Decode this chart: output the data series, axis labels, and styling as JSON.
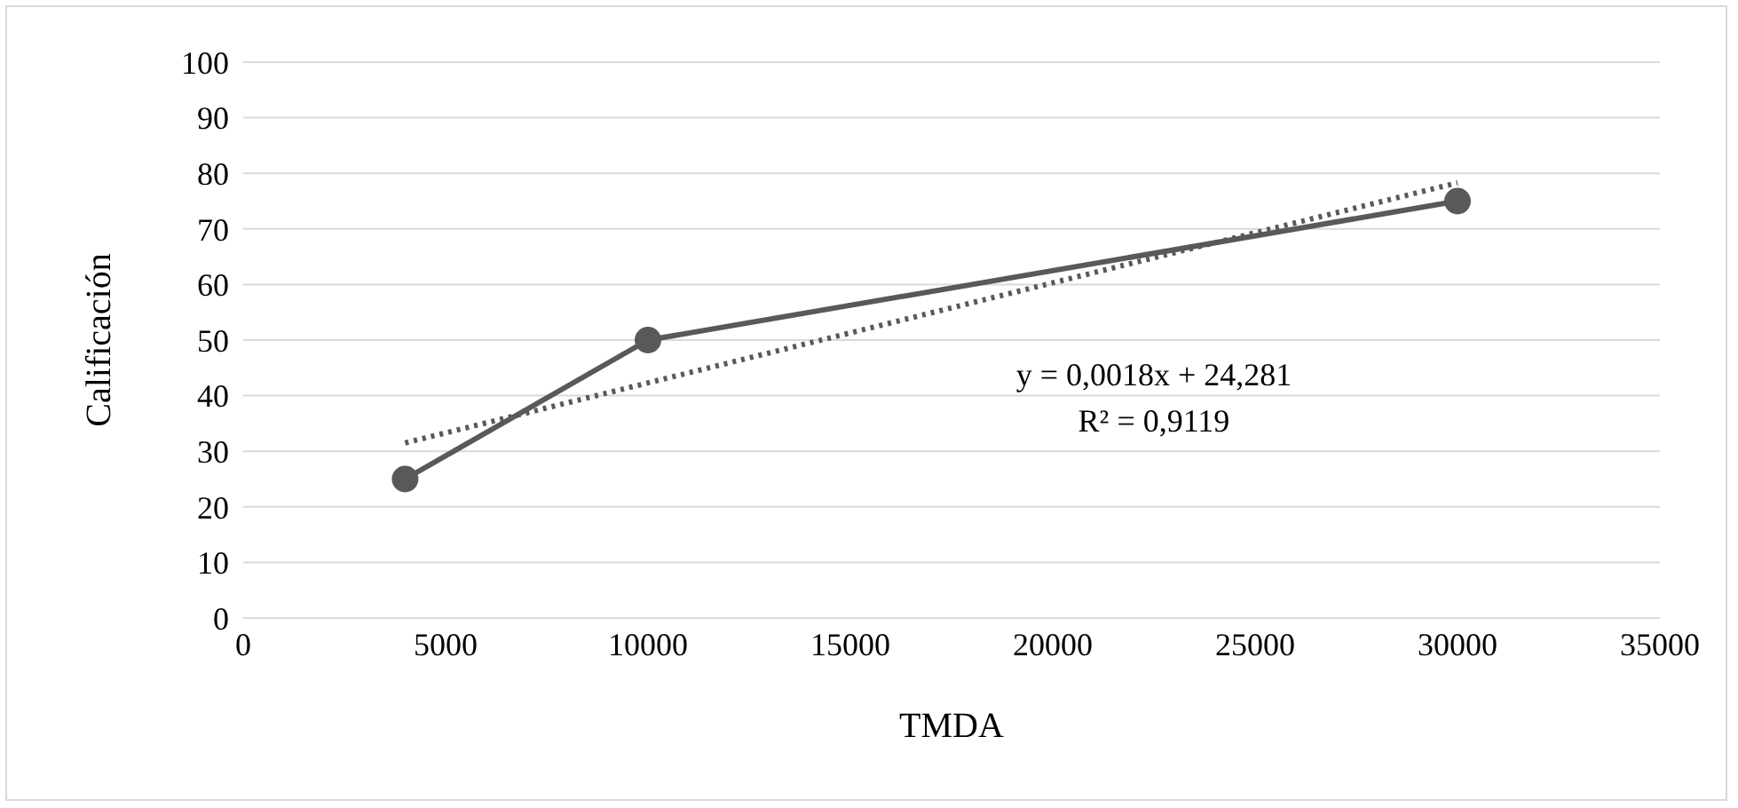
{
  "chart_data": {
    "type": "line",
    "xlabel": "TMDA",
    "ylabel": "Calificación",
    "xlim": [
      0,
      35000
    ],
    "xticks": [
      0,
      5000,
      10000,
      15000,
      20000,
      25000,
      30000,
      35000
    ],
    "ylim": [
      0,
      100
    ],
    "yticks": [
      0,
      10,
      20,
      30,
      40,
      50,
      60,
      70,
      80,
      90,
      100
    ],
    "grid": "y",
    "marker": "circle",
    "line_style": "solid",
    "series": [
      {
        "color": "#595959",
        "x": [
          4000,
          10000,
          30000
        ],
        "values": [
          25,
          50,
          75
        ]
      },
      {
        "color": "#595959",
        "x": [
          4000,
          30000
        ],
        "values": [
          31.5,
          78.3
        ],
        "marker": "none",
        "line_style": "dotted"
      }
    ],
    "annotations": [
      "y = 0,0018x + 24,281",
      "R² = 0,9119"
    ]
  }
}
